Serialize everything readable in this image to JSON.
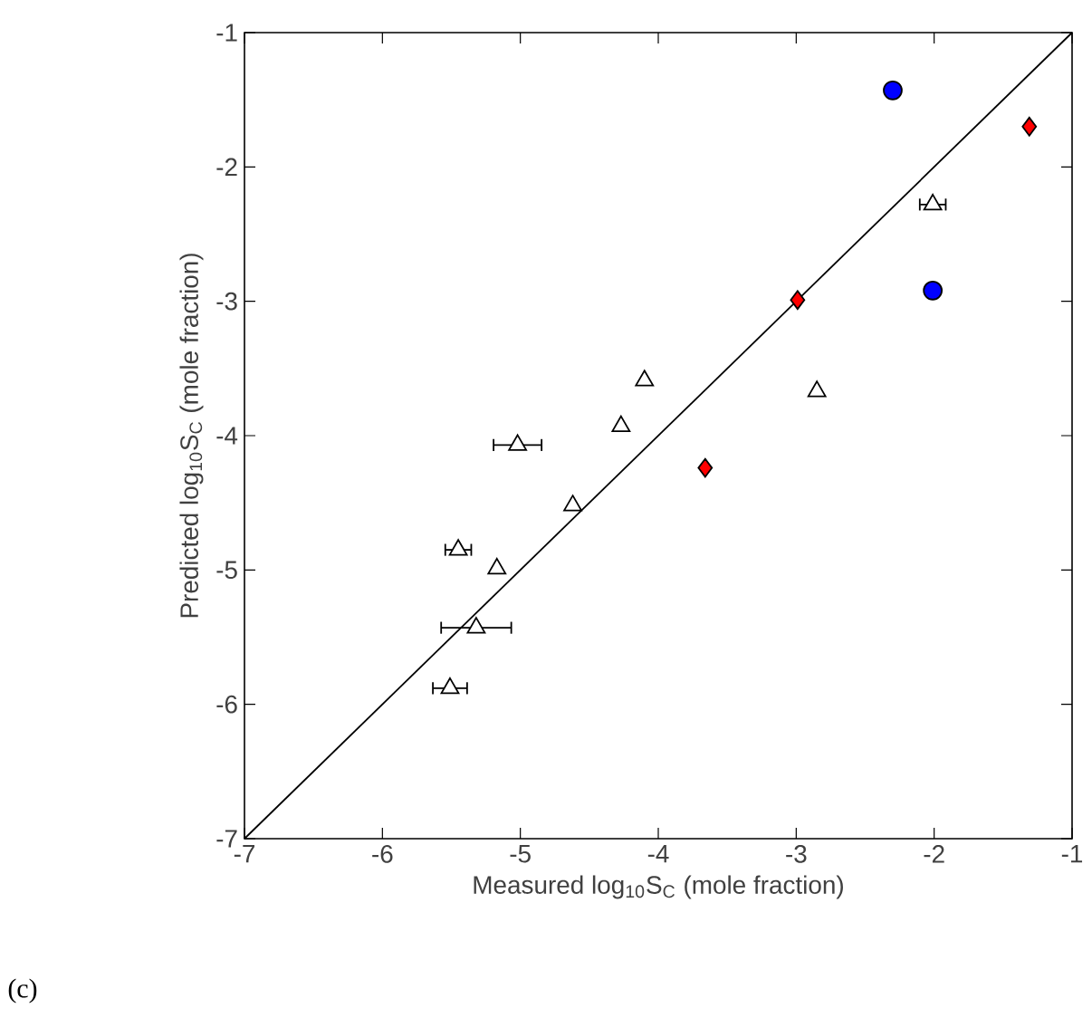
{
  "chart_data": {
    "type": "scatter",
    "xlabel": "Measured log$_{10}$S$_{C}$ (mole fraction)",
    "ylabel": "Predicted log$_{10}$S$_{C}$ (mole fraction)",
    "annotations": [
      "(c)"
    ],
    "xlim": [
      -7,
      -1
    ],
    "ylim": [
      -7,
      -1
    ],
    "xticks": [
      -7,
      -6,
      -5,
      -4,
      -3,
      -2,
      -1
    ],
    "yticks": [
      -7,
      -6,
      -5,
      -4,
      -3,
      -2,
      -1
    ],
    "series": [
      {
        "type": "line",
        "color": "#000000",
        "marker": "none",
        "line_style": "solid",
        "x": [
          -7,
          -1
        ],
        "values": [
          -7,
          -1
        ]
      },
      {
        "color": "#ffffff",
        "marker": "triangle",
        "x": [
          -5.51,
          -5.32,
          -5.45,
          -5.17,
          -4.62,
          -5.02,
          -4.27,
          -4.1,
          -2.85,
          -2.01
        ],
        "values": [
          -5.88,
          -5.43,
          -4.85,
          -4.99,
          -4.52,
          -4.07,
          -3.93,
          -3.59,
          -3.67,
          -2.28
        ],
        "xerrors": [
          0.13,
          0.26,
          0.1,
          null,
          null,
          0.18,
          null,
          null,
          null,
          0.1
        ]
      },
      {
        "color": "#ff0000",
        "marker": "diamond",
        "x": [
          -3.66,
          -2.99,
          -1.31
        ],
        "values": [
          -4.24,
          -2.99,
          -1.7
        ]
      },
      {
        "color": "#0000ff",
        "marker": "circle",
        "x": [
          -2.3,
          -2.01
        ],
        "values": [
          -1.43,
          -2.92
        ]
      }
    ]
  }
}
